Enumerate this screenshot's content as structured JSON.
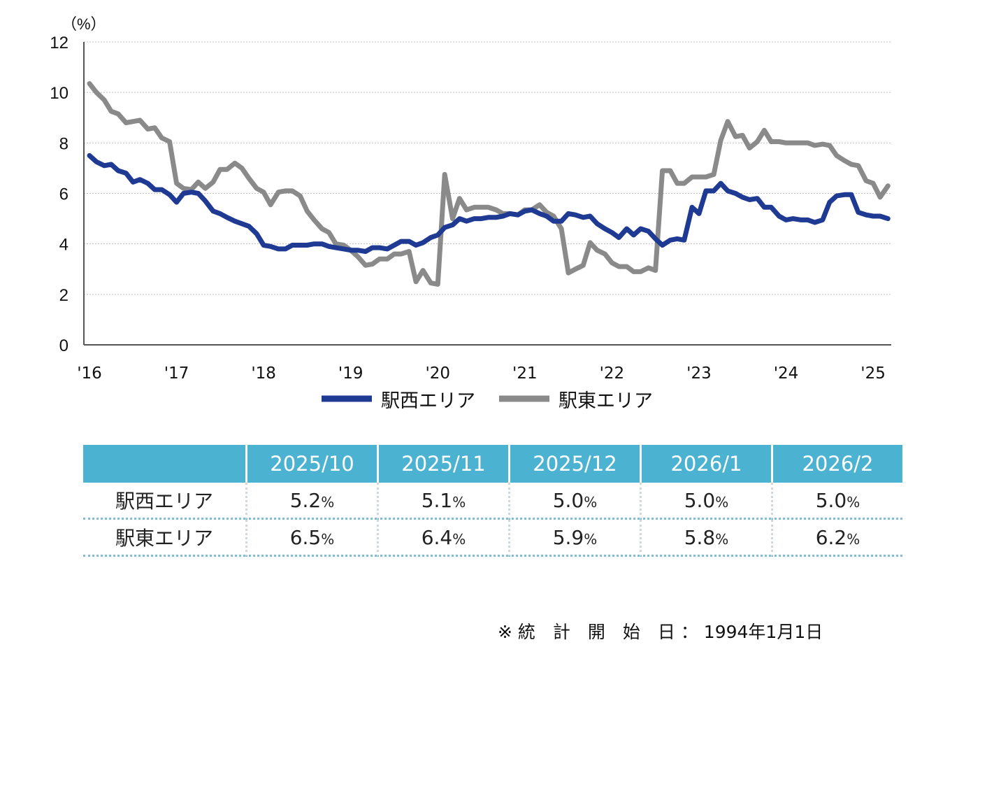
{
  "chart_data": {
    "type": "line",
    "unit_label": "（%）",
    "ylim": [
      0,
      12
    ],
    "yticks": [
      "0",
      "2",
      "4",
      "6",
      "8",
      "10",
      "12"
    ],
    "xlim": [
      2016,
      2025.2
    ],
    "xticks": [
      {
        "x": 2016,
        "label": "'16"
      },
      {
        "x": 2017,
        "label": "'17"
      },
      {
        "x": 2018,
        "label": "'18"
      },
      {
        "x": 2019,
        "label": "'19"
      },
      {
        "x": 2020,
        "label": "'20"
      },
      {
        "x": 2021,
        "label": "'21"
      },
      {
        "x": 2022,
        "label": "'22"
      },
      {
        "x": 2023,
        "label": "'23"
      },
      {
        "x": 2024,
        "label": "'24"
      },
      {
        "x": 2025,
        "label": "'25"
      }
    ],
    "grid": true,
    "legend_position": "bottom-center",
    "series": [
      {
        "name": "駅西エリア",
        "color": "#1f3a93",
        "points": [
          [
            2016.0,
            7.5
          ],
          [
            2016.08,
            7.25
          ],
          [
            2016.17,
            7.1
          ],
          [
            2016.25,
            7.15
          ],
          [
            2016.33,
            6.9
          ],
          [
            2016.42,
            6.8
          ],
          [
            2016.5,
            6.45
          ],
          [
            2016.58,
            6.55
          ],
          [
            2016.67,
            6.4
          ],
          [
            2016.75,
            6.15
          ],
          [
            2016.83,
            6.15
          ],
          [
            2016.92,
            5.95
          ],
          [
            2017.0,
            5.65
          ],
          [
            2017.08,
            6.0
          ],
          [
            2017.17,
            6.05
          ],
          [
            2017.25,
            6.0
          ],
          [
            2017.33,
            5.7
          ],
          [
            2017.42,
            5.3
          ],
          [
            2017.5,
            5.2
          ],
          [
            2017.58,
            5.05
          ],
          [
            2017.67,
            4.9
          ],
          [
            2017.75,
            4.8
          ],
          [
            2017.83,
            4.7
          ],
          [
            2017.92,
            4.4
          ],
          [
            2018.0,
            3.95
          ],
          [
            2018.08,
            3.9
          ],
          [
            2018.17,
            3.8
          ],
          [
            2018.25,
            3.8
          ],
          [
            2018.33,
            3.95
          ],
          [
            2018.42,
            3.95
          ],
          [
            2018.5,
            3.95
          ],
          [
            2018.58,
            4.0
          ],
          [
            2018.67,
            4.0
          ],
          [
            2018.75,
            3.9
          ],
          [
            2018.83,
            3.85
          ],
          [
            2018.92,
            3.8
          ],
          [
            2019.0,
            3.75
          ],
          [
            2019.08,
            3.75
          ],
          [
            2019.17,
            3.7
          ],
          [
            2019.25,
            3.85
          ],
          [
            2019.33,
            3.85
          ],
          [
            2019.42,
            3.8
          ],
          [
            2019.5,
            3.95
          ],
          [
            2019.58,
            4.1
          ],
          [
            2019.67,
            4.1
          ],
          [
            2019.75,
            3.95
          ],
          [
            2019.83,
            4.05
          ],
          [
            2019.92,
            4.25
          ],
          [
            2020.0,
            4.35
          ],
          [
            2020.08,
            4.65
          ],
          [
            2020.17,
            4.75
          ],
          [
            2020.25,
            5.0
          ],
          [
            2020.33,
            4.9
          ],
          [
            2020.42,
            5.0
          ],
          [
            2020.5,
            5.0
          ],
          [
            2020.58,
            5.05
          ],
          [
            2020.67,
            5.05
          ],
          [
            2020.75,
            5.1
          ],
          [
            2020.83,
            5.2
          ],
          [
            2020.92,
            5.15
          ],
          [
            2021.0,
            5.3
          ],
          [
            2021.08,
            5.35
          ],
          [
            2021.17,
            5.2
          ],
          [
            2021.25,
            5.1
          ],
          [
            2021.33,
            4.9
          ],
          [
            2021.42,
            4.9
          ],
          [
            2021.5,
            5.2
          ],
          [
            2021.58,
            5.15
          ],
          [
            2021.67,
            5.05
          ],
          [
            2021.75,
            5.1
          ],
          [
            2021.83,
            4.8
          ],
          [
            2021.92,
            4.6
          ],
          [
            2022.0,
            4.45
          ],
          [
            2022.08,
            4.25
          ],
          [
            2022.17,
            4.6
          ],
          [
            2022.25,
            4.35
          ],
          [
            2022.33,
            4.6
          ],
          [
            2022.42,
            4.5
          ],
          [
            2022.5,
            4.2
          ],
          [
            2022.58,
            3.95
          ],
          [
            2022.67,
            4.15
          ],
          [
            2022.75,
            4.2
          ],
          [
            2022.83,
            4.15
          ],
          [
            2022.92,
            5.45
          ],
          [
            2023.0,
            5.2
          ],
          [
            2023.08,
            6.1
          ],
          [
            2023.17,
            6.1
          ],
          [
            2023.25,
            6.4
          ],
          [
            2023.33,
            6.1
          ],
          [
            2023.42,
            6.0
          ],
          [
            2023.5,
            5.85
          ],
          [
            2023.58,
            5.75
          ],
          [
            2023.67,
            5.8
          ],
          [
            2023.75,
            5.45
          ],
          [
            2023.83,
            5.45
          ],
          [
            2023.92,
            5.1
          ],
          [
            2024.0,
            4.95
          ],
          [
            2024.08,
            5.0
          ],
          [
            2024.17,
            4.95
          ],
          [
            2024.25,
            4.95
          ],
          [
            2024.33,
            4.85
          ],
          [
            2024.42,
            4.95
          ],
          [
            2024.5,
            5.65
          ],
          [
            2024.58,
            5.9
          ],
          [
            2024.67,
            5.95
          ],
          [
            2024.75,
            5.95
          ],
          [
            2024.83,
            5.25
          ],
          [
            2024.92,
            5.15
          ],
          [
            2025.0,
            5.1
          ],
          [
            2025.08,
            5.1
          ],
          [
            2025.17,
            5.0
          ]
        ]
      },
      {
        "name": "駅東エリア",
        "color": "#8a8a8a",
        "points": [
          [
            2016.0,
            10.35
          ],
          [
            2016.08,
            10.0
          ],
          [
            2016.17,
            9.7
          ],
          [
            2016.25,
            9.25
          ],
          [
            2016.33,
            9.15
          ],
          [
            2016.42,
            8.8
          ],
          [
            2016.5,
            8.85
          ],
          [
            2016.58,
            8.9
          ],
          [
            2016.67,
            8.55
          ],
          [
            2016.75,
            8.6
          ],
          [
            2016.83,
            8.2
          ],
          [
            2016.92,
            8.05
          ],
          [
            2017.0,
            6.4
          ],
          [
            2017.08,
            6.2
          ],
          [
            2017.17,
            6.15
          ],
          [
            2017.25,
            6.45
          ],
          [
            2017.33,
            6.2
          ],
          [
            2017.42,
            6.45
          ],
          [
            2017.5,
            6.95
          ],
          [
            2017.58,
            6.95
          ],
          [
            2017.67,
            7.2
          ],
          [
            2017.75,
            7.0
          ],
          [
            2017.83,
            6.6
          ],
          [
            2017.92,
            6.2
          ],
          [
            2018.0,
            6.05
          ],
          [
            2018.08,
            5.55
          ],
          [
            2018.17,
            6.05
          ],
          [
            2018.25,
            6.1
          ],
          [
            2018.33,
            6.1
          ],
          [
            2018.42,
            5.9
          ],
          [
            2018.5,
            5.3
          ],
          [
            2018.58,
            4.95
          ],
          [
            2018.67,
            4.6
          ],
          [
            2018.75,
            4.45
          ],
          [
            2018.83,
            4.0
          ],
          [
            2018.92,
            3.95
          ],
          [
            2019.0,
            3.75
          ],
          [
            2019.08,
            3.5
          ],
          [
            2019.17,
            3.15
          ],
          [
            2019.25,
            3.2
          ],
          [
            2019.33,
            3.4
          ],
          [
            2019.42,
            3.4
          ],
          [
            2019.5,
            3.6
          ],
          [
            2019.58,
            3.6
          ],
          [
            2019.67,
            3.7
          ],
          [
            2019.75,
            2.5
          ],
          [
            2019.83,
            2.95
          ],
          [
            2019.92,
            2.45
          ],
          [
            2020.0,
            2.4
          ],
          [
            2020.08,
            6.75
          ],
          [
            2020.17,
            5.0
          ],
          [
            2020.25,
            5.8
          ],
          [
            2020.33,
            5.35
          ],
          [
            2020.42,
            5.45
          ],
          [
            2020.5,
            5.45
          ],
          [
            2020.58,
            5.45
          ],
          [
            2020.67,
            5.35
          ],
          [
            2020.75,
            5.2
          ],
          [
            2020.83,
            5.2
          ],
          [
            2020.92,
            5.15
          ],
          [
            2021.0,
            5.35
          ],
          [
            2021.08,
            5.35
          ],
          [
            2021.17,
            5.55
          ],
          [
            2021.25,
            5.25
          ],
          [
            2021.33,
            5.1
          ],
          [
            2021.42,
            4.6
          ],
          [
            2021.5,
            2.85
          ],
          [
            2021.58,
            3.0
          ],
          [
            2021.67,
            3.15
          ],
          [
            2021.75,
            4.05
          ],
          [
            2021.83,
            3.75
          ],
          [
            2021.92,
            3.6
          ],
          [
            2022.0,
            3.25
          ],
          [
            2022.08,
            3.1
          ],
          [
            2022.17,
            3.1
          ],
          [
            2022.25,
            2.9
          ],
          [
            2022.33,
            2.9
          ],
          [
            2022.42,
            3.05
          ],
          [
            2022.5,
            2.95
          ],
          [
            2022.58,
            6.9
          ],
          [
            2022.67,
            6.9
          ],
          [
            2022.75,
            6.4
          ],
          [
            2022.83,
            6.4
          ],
          [
            2022.92,
            6.65
          ],
          [
            2023.0,
            6.65
          ],
          [
            2023.08,
            6.65
          ],
          [
            2023.17,
            6.75
          ],
          [
            2023.25,
            8.1
          ],
          [
            2023.33,
            8.85
          ],
          [
            2023.42,
            8.25
          ],
          [
            2023.5,
            8.3
          ],
          [
            2023.58,
            7.8
          ],
          [
            2023.67,
            8.05
          ],
          [
            2023.75,
            8.5
          ],
          [
            2023.83,
            8.05
          ],
          [
            2023.92,
            8.05
          ],
          [
            2024.0,
            8.0
          ],
          [
            2024.08,
            8.0
          ],
          [
            2024.17,
            8.0
          ],
          [
            2024.25,
            8.0
          ],
          [
            2024.33,
            7.9
          ],
          [
            2024.42,
            7.95
          ],
          [
            2024.5,
            7.9
          ],
          [
            2024.58,
            7.5
          ],
          [
            2024.67,
            7.3
          ],
          [
            2024.75,
            7.15
          ],
          [
            2024.83,
            7.1
          ],
          [
            2024.92,
            6.5
          ],
          [
            2025.0,
            6.4
          ],
          [
            2025.08,
            5.85
          ],
          [
            2025.17,
            6.3
          ]
        ]
      }
    ]
  },
  "table": {
    "headers": [
      "2025/10",
      "2025/11",
      "2025/12",
      "2026/1",
      "2026/2"
    ],
    "pct_symbol": "%",
    "rows": [
      {
        "label": "駅西エリア",
        "values": [
          "5.2",
          "5.1",
          "5.0",
          "5.0",
          "5.0"
        ]
      },
      {
        "label": "駅東エリア",
        "values": [
          "6.5",
          "6.4",
          "5.9",
          "5.8",
          "6.2"
        ]
      }
    ]
  },
  "footnote": "※ 統　計　開　始　日 ： 1994年1月1日"
}
